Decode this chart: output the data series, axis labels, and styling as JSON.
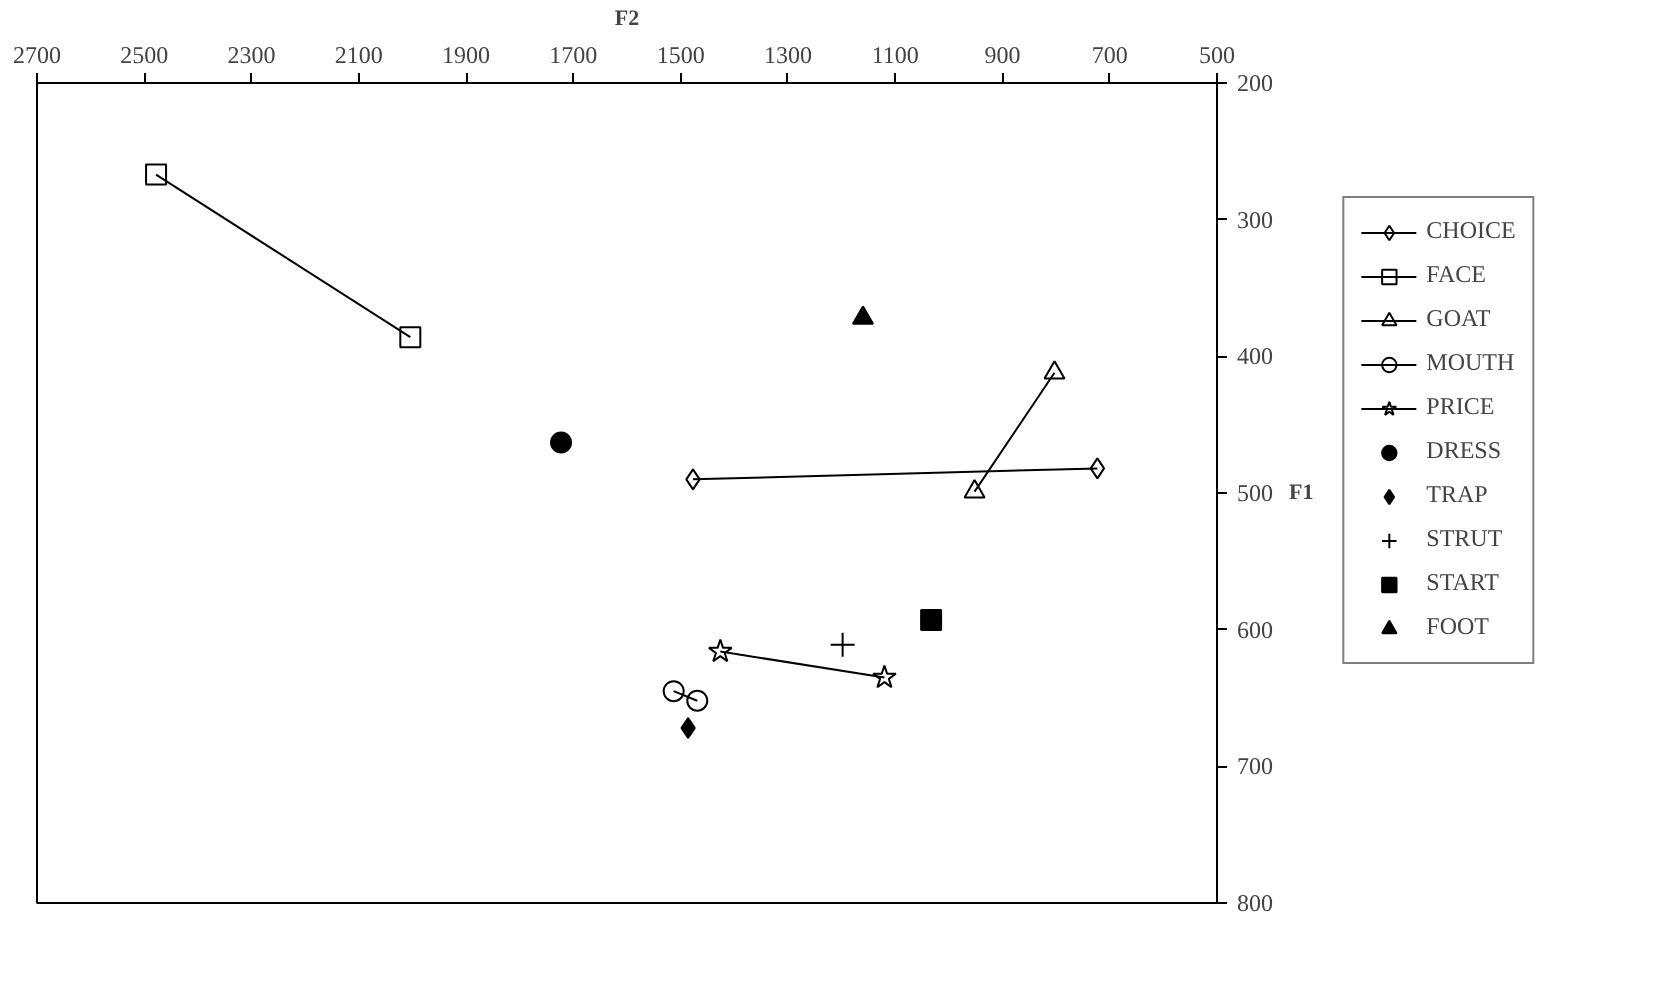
{
  "chart_data": {
    "type": "line",
    "xlabel": "F2",
    "ylabel": "F1",
    "xlim": [
      2700,
      500
    ],
    "ylim": [
      800,
      200
    ],
    "xticks": [
      2700,
      2500,
      2300,
      2100,
      1900,
      1700,
      1500,
      1300,
      1100,
      900,
      700,
      500
    ],
    "yticks": [
      200,
      300,
      400,
      500,
      600,
      700,
      800
    ],
    "grid": false,
    "legend": "right",
    "series": [
      {
        "name": "CHOICE",
        "marker": "diamond",
        "color": "#000000",
        "x": [
          1477,
          723
        ],
        "values": [
          490,
          482
        ]
      },
      {
        "name": "FACE",
        "marker": "square",
        "color": "#000000",
        "x": [
          2478,
          2004
        ],
        "values": [
          267,
          386
        ]
      },
      {
        "name": "GOAT",
        "marker": "triangle",
        "color": "#000000",
        "x": [
          952,
          803
        ],
        "values": [
          499,
          412
        ]
      },
      {
        "name": "MOUTH",
        "marker": "circle",
        "color": "#000000",
        "x": [
          1513,
          1469
        ],
        "values": [
          645,
          652
        ]
      },
      {
        "name": "PRICE",
        "marker": "star",
        "color": "#000000",
        "x": [
          1426,
          1120
        ],
        "values": [
          616,
          635
        ]
      },
      {
        "name": "DRESS",
        "type": "scatter",
        "marker": "circle",
        "color": "#000000",
        "x": [
          1723
        ],
        "values": [
          463
        ]
      },
      {
        "name": "TRAP",
        "type": "scatter",
        "marker": "diamond",
        "color": "#000000",
        "x": [
          1486
        ],
        "values": [
          672
        ]
      },
      {
        "name": "STRUT",
        "type": "scatter",
        "marker": "cross",
        "color": "#000000",
        "x": [
          1198
        ],
        "values": [
          611
        ]
      },
      {
        "name": "START",
        "type": "scatter",
        "marker": "square",
        "color": "#000000",
        "x": [
          1033
        ],
        "values": [
          593
        ]
      },
      {
        "name": "FOOT",
        "type": "scatter",
        "marker": "triangle",
        "color": "#000000",
        "x": [
          1160
        ],
        "values": [
          372
        ]
      }
    ]
  }
}
